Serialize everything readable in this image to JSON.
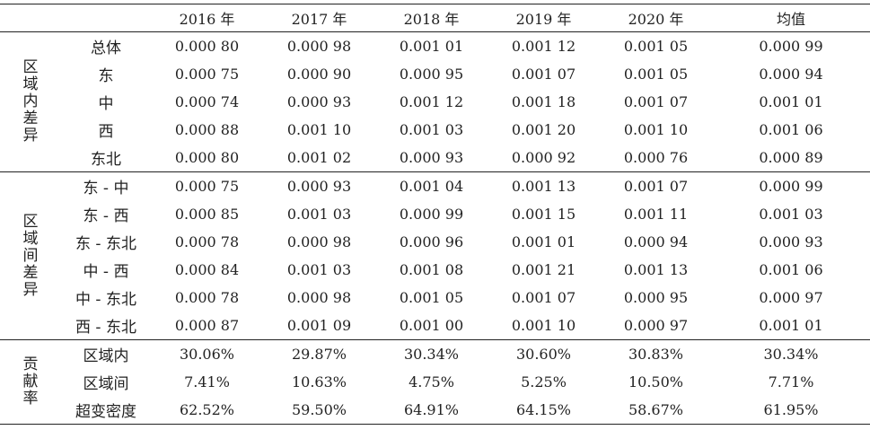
{
  "columns": [
    "",
    "",
    "2016 年",
    "2017 年",
    "2018 年",
    "2019 年",
    "2020 年",
    "均值"
  ],
  "groups": [
    {
      "label": "区域内差异",
      "rows": [
        {
          "label": "总体",
          "values": [
            "0.000 80",
            "0.000 98",
            "0.001 01",
            "0.001 12",
            "0.001 05",
            "0.000 99"
          ]
        },
        {
          "label": "东",
          "values": [
            "0.000 75",
            "0.000 90",
            "0.000 95",
            "0.001 07",
            "0.001 05",
            "0.000 94"
          ]
        },
        {
          "label": "中",
          "values": [
            "0.000 74",
            "0.000 93",
            "0.001 12",
            "0.001 18",
            "0.001 07",
            "0.001 01"
          ]
        },
        {
          "label": "西",
          "values": [
            "0.000 88",
            "0.001 10",
            "0.001 03",
            "0.001 20",
            "0.001 10",
            "0.001 06"
          ]
        },
        {
          "label": "东北",
          "values": [
            "0.000 80",
            "0.001 02",
            "0.000 93",
            "0.000 92",
            "0.000 76",
            "0.000 89"
          ]
        }
      ]
    },
    {
      "label": "区域间差异",
      "rows": [
        {
          "label": "东 - 中",
          "values": [
            "0.000 75",
            "0.000 93",
            "0.001 04",
            "0.001 13",
            "0.001 07",
            "0.000 99"
          ]
        },
        {
          "label": "东 - 西",
          "values": [
            "0.000 85",
            "0.001 03",
            "0.000 99",
            "0.001 15",
            "0.001 11",
            "0.001 03"
          ]
        },
        {
          "label": "东 - 东北",
          "values": [
            "0.000 78",
            "0.000 98",
            "0.000 96",
            "0.001 01",
            "0.000 94",
            "0.000 93"
          ]
        },
        {
          "label": "中 - 西",
          "values": [
            "0.000 84",
            "0.001 03",
            "0.001 08",
            "0.001 21",
            "0.001 13",
            "0.001 06"
          ]
        },
        {
          "label": "中 - 东北",
          "values": [
            "0.000 78",
            "0.000 98",
            "0.001 05",
            "0.001 07",
            "0.000 95",
            "0.000 97"
          ]
        },
        {
          "label": "西 - 东北",
          "values": [
            "0.000 87",
            "0.001 09",
            "0.001 00",
            "0.001 10",
            "0.000 97",
            "0.001 01"
          ]
        }
      ]
    },
    {
      "label": "贡献率",
      "rows": [
        {
          "label": "区域内",
          "values": [
            "30.06%",
            "29.87%",
            "30.34%",
            "30.60%",
            "30.83%",
            "30.34%"
          ]
        },
        {
          "label": "区域间",
          "values": [
            "7.41%",
            "10.63%",
            "4.75%",
            "5.25%",
            "10.50%",
            "7.71%"
          ]
        },
        {
          "label": "超变密度",
          "values": [
            "62.52%",
            "59.50%",
            "64.91%",
            "64.15%",
            "58.67%",
            "61.95%"
          ]
        }
      ]
    }
  ]
}
